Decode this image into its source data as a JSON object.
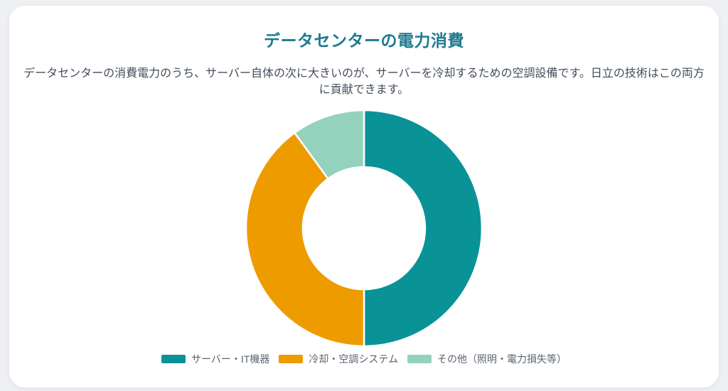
{
  "page": {
    "background_color": "#eef0f3",
    "card_color": "#ffffff"
  },
  "header": {
    "title": "データセンターの電力消費",
    "title_color": "#1c7a8e",
    "description": "データセンターの消費電力のうち、サーバー自体の次に大きいのが、サーバーを冷却するための空調設備です。日立の技術はこの両方に貢献できます。"
  },
  "chart_data": {
    "type": "pie",
    "subtype": "doughnut",
    "title": "データセンターの電力消費",
    "labels": [
      "サーバー・IT機器",
      "冷却・空調システム",
      "その他（照明・電力損失等）"
    ],
    "values": [
      50,
      40,
      10
    ],
    "unit": "%",
    "colors": [
      "#0a9396",
      "#ee9b00",
      "#94d2bd"
    ],
    "border_color": "#ffffff",
    "start_angle_deg": 0,
    "direction": "clockwise",
    "cutout_ratio": 0.52,
    "legend_position": "bottom",
    "data_labels_shown": false
  }
}
